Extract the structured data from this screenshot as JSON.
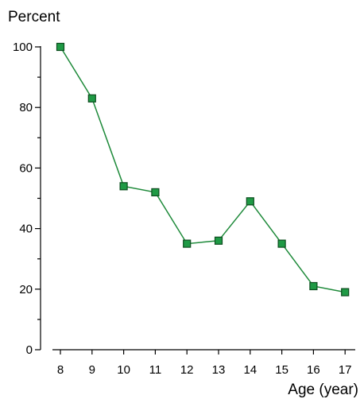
{
  "chart_data": {
    "type": "line",
    "title": "",
    "ylabel": "Percent",
    "xlabel": "Age (year)",
    "x": [
      8,
      9,
      10,
      11,
      12,
      13,
      14,
      15,
      16,
      17
    ],
    "x_tick_labels": [
      "8",
      "9",
      "10",
      "11",
      "12",
      "13",
      "14",
      "15",
      "16",
      "17"
    ],
    "y_tick_values": [
      0,
      20,
      40,
      60,
      80,
      100
    ],
    "y_tick_labels": [
      "0",
      "20",
      "40",
      "60",
      "80",
      "100"
    ],
    "y_minor_tick_values": [
      10,
      30,
      50,
      70,
      90
    ],
    "ylim": [
      0,
      100
    ],
    "grid": false,
    "legend": "none",
    "series": [
      {
        "values": [
          100,
          83,
          54,
          52,
          35,
          36,
          49,
          35,
          21,
          19
        ],
        "marker": "square",
        "line_color": "#1e8a3a",
        "marker_fill": "#1f9a45",
        "marker_edge": "#0d4d1f"
      }
    ]
  }
}
